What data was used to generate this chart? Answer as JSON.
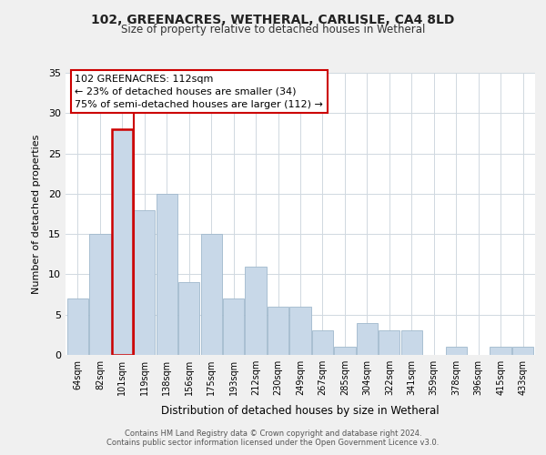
{
  "title": "102, GREENACRES, WETHERAL, CARLISLE, CA4 8LD",
  "subtitle": "Size of property relative to detached houses in Wetheral",
  "xlabel": "Distribution of detached houses by size in Wetheral",
  "ylabel": "Number of detached properties",
  "bar_labels": [
    "64sqm",
    "82sqm",
    "101sqm",
    "119sqm",
    "138sqm",
    "156sqm",
    "175sqm",
    "193sqm",
    "212sqm",
    "230sqm",
    "249sqm",
    "267sqm",
    "285sqm",
    "304sqm",
    "322sqm",
    "341sqm",
    "359sqm",
    "378sqm",
    "396sqm",
    "415sqm",
    "433sqm"
  ],
  "bar_values": [
    7,
    15,
    28,
    18,
    20,
    9,
    15,
    7,
    11,
    6,
    6,
    3,
    1,
    4,
    3,
    3,
    0,
    1,
    0,
    1,
    1
  ],
  "bar_color": "#c8d8e8",
  "bar_edge_color": "#a0b8cc",
  "highlight_bar_index": 2,
  "highlight_color": "#cc0000",
  "ylim": [
    0,
    35
  ],
  "yticks": [
    0,
    5,
    10,
    15,
    20,
    25,
    30,
    35
  ],
  "annotation_title": "102 GREENACRES: 112sqm",
  "annotation_line1": "← 23% of detached houses are smaller (34)",
  "annotation_line2": "75% of semi-detached houses are larger (112) →",
  "annotation_box_color": "#ffffff",
  "annotation_box_edge": "#cc0000",
  "footer_line1": "Contains HM Land Registry data © Crown copyright and database right 2024.",
  "footer_line2": "Contains public sector information licensed under the Open Government Licence v3.0.",
  "background_color": "#f0f0f0",
  "plot_bg_color": "#ffffff",
  "grid_color": "#d0d8e0"
}
